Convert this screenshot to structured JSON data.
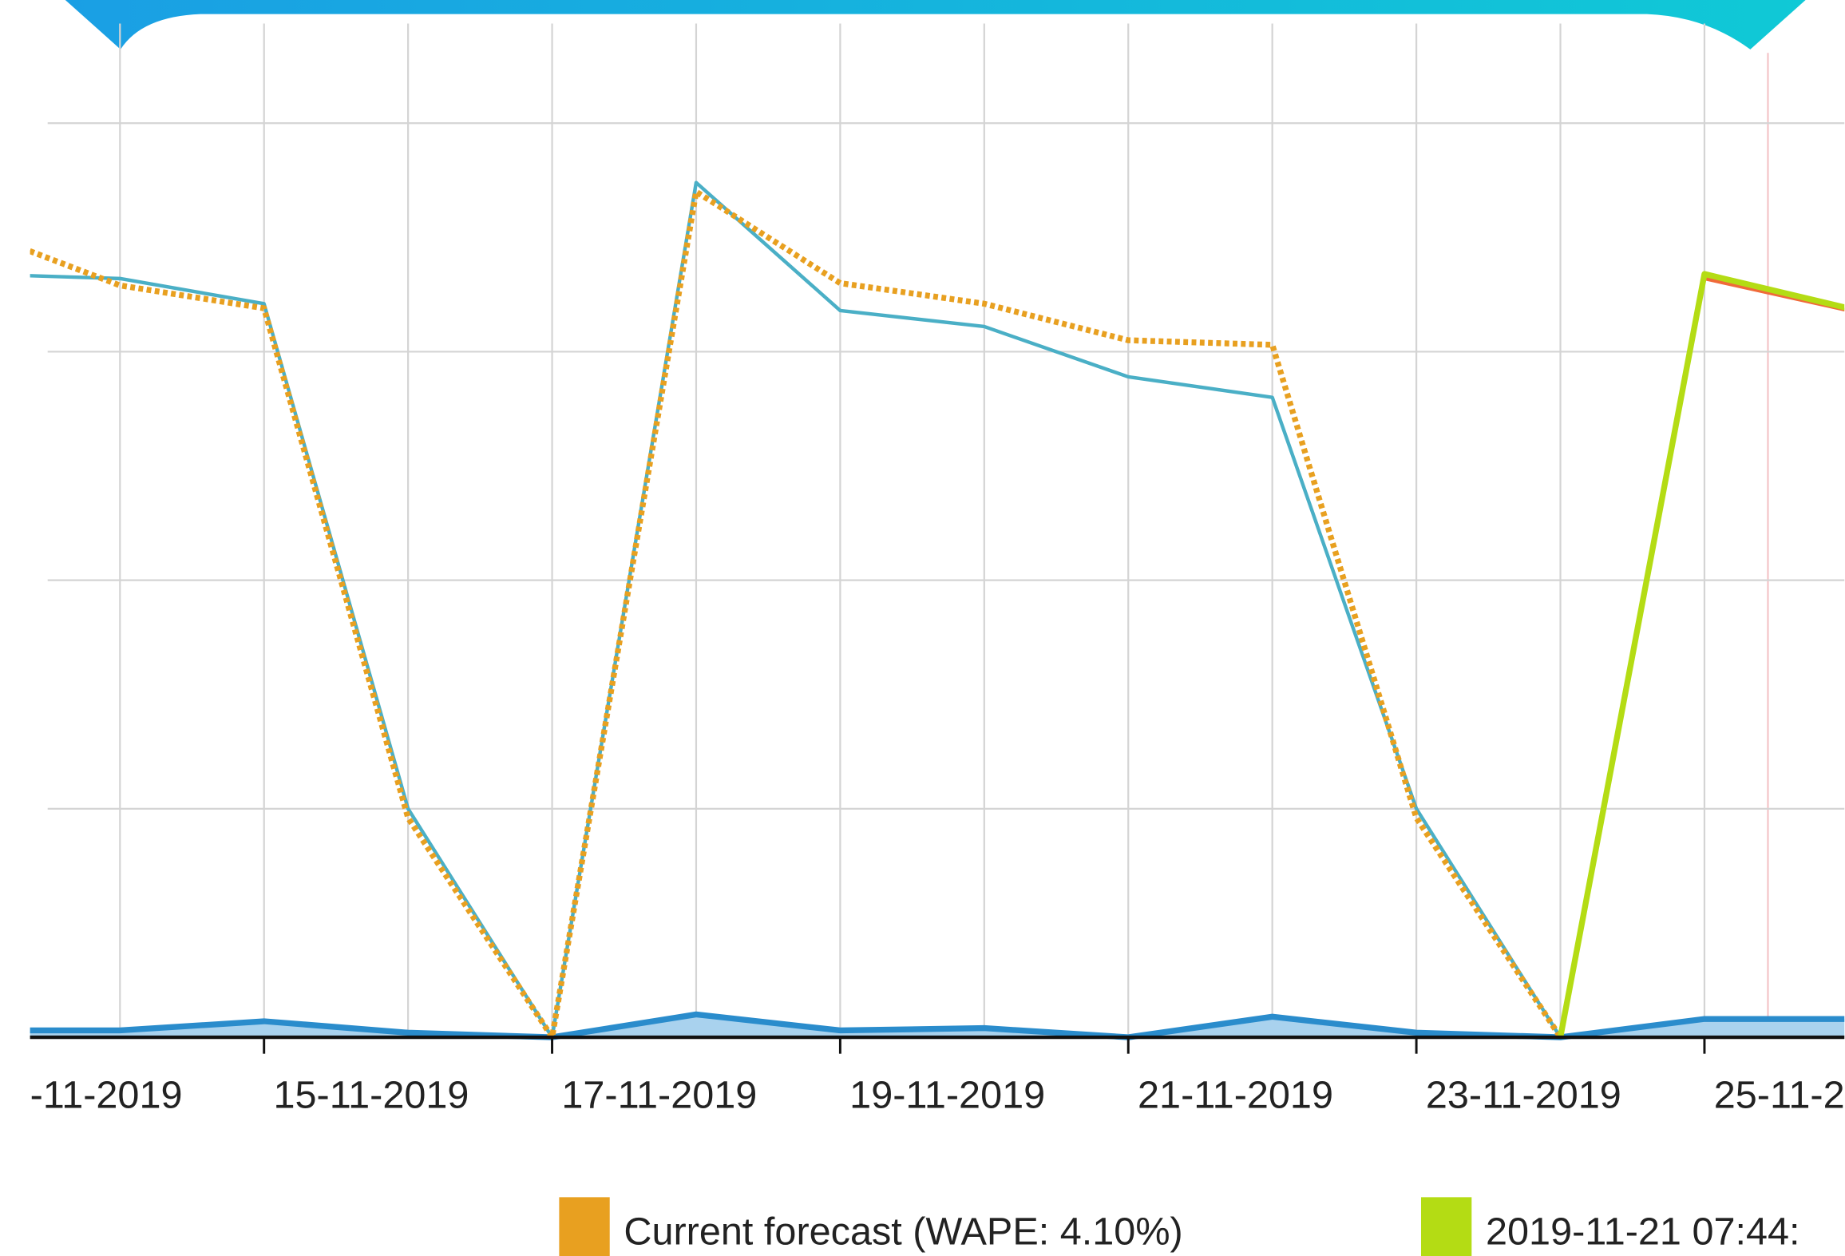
{
  "chart_data": {
    "type": "line",
    "categories": [
      "-11-2019",
      null,
      "15-11-2019",
      null,
      "17-11-2019",
      null,
      "19-11-2019",
      null,
      "21-11-2019",
      null,
      "23-11-2019",
      null,
      "25-11-2",
      null
    ],
    "ylim": [
      0,
      4.4
    ],
    "yticks": [
      0,
      1,
      2,
      3,
      4
    ],
    "grid": true,
    "series": [
      {
        "color": "#2a8ccc",
        "style": "area",
        "values": [
          0.03,
          0.03,
          0.07,
          0.02,
          0,
          0.1,
          0.03,
          0.04,
          0,
          0.09,
          0.02,
          0,
          0.08,
          0.08
        ]
      },
      {
        "color": "#f06a3a",
        "style": "solid",
        "values": [
          null,
          null,
          null,
          null,
          null,
          null,
          null,
          null,
          null,
          null,
          null,
          0,
          3.32,
          3.18
        ]
      },
      {
        "color": "#4aafc6",
        "style": "solid",
        "values": [
          3.34,
          3.32,
          3.21,
          1.0,
          0,
          3.74,
          3.18,
          3.11,
          2.89,
          2.8,
          1.0,
          0,
          null,
          null
        ]
      },
      {
        "name": "Current forecast (WAPE: 4.10%)",
        "color": "#e8a020",
        "style": "dotted",
        "values": [
          3.53,
          3.29,
          3.19,
          0.96,
          0,
          3.7,
          3.3,
          3.21,
          3.05,
          3.03,
          0.96,
          0,
          null,
          null
        ]
      },
      {
        "name": "2019-11-21 07:44:",
        "color": "#b4dc14",
        "style": "solid",
        "values": [
          null,
          null,
          null,
          null,
          null,
          null,
          null,
          null,
          null,
          null,
          null,
          0,
          3.34,
          3.19
        ]
      }
    ]
  }
}
